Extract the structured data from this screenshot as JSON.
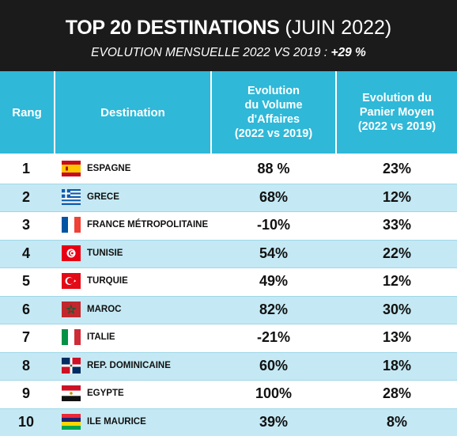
{
  "title": {
    "bold": "TOP 20 DESTINATIONS",
    "normal": "(JUIN 2022)",
    "subtitle": "EVOLUTION MENSUELLE 2022 VS 2019 :",
    "subtitle_value": "+29 %"
  },
  "headers": {
    "rang": "Rang",
    "destination": "Destination",
    "volume": [
      "Evolution",
      "du Volume",
      "d'Affaires",
      "(2022 vs 2019)"
    ],
    "panier": [
      "Evolution du",
      "Panier Moyen",
      "(2022 vs 2019)"
    ]
  },
  "colors": {
    "title_bg": "#1b1b1b",
    "header_bg": "#2fb8d8",
    "row_alt_bg": "#c4e9f4"
  },
  "rows": [
    {
      "rang": "1",
      "destination": "ESPAGNE",
      "flag": "spain-flag-icon",
      "volume": "88 %",
      "panier": "23%"
    },
    {
      "rang": "2",
      "destination": "GRECE",
      "flag": "greece-flag-icon",
      "volume": "68%",
      "panier": "12%"
    },
    {
      "rang": "3",
      "destination": "FRANCE MÉTROPOLITAINE",
      "flag": "france-flag-icon",
      "volume": "-10%",
      "panier": "33%"
    },
    {
      "rang": "4",
      "destination": "TUNISIE",
      "flag": "tunisia-flag-icon",
      "volume": "54%",
      "panier": "22%"
    },
    {
      "rang": "5",
      "destination": "TURQUIE",
      "flag": "turkey-flag-icon",
      "volume": "49%",
      "panier": "12%"
    },
    {
      "rang": "6",
      "destination": "MAROC",
      "flag": "morocco-flag-icon",
      "volume": "82%",
      "panier": "30%"
    },
    {
      "rang": "7",
      "destination": "ITALIE",
      "flag": "italy-flag-icon",
      "volume": "-21%",
      "panier": "13%"
    },
    {
      "rang": "8",
      "destination": "REP. DOMINICAINE",
      "flag": "dominican-republic-flag-icon",
      "volume": "60%",
      "panier": "18%"
    },
    {
      "rang": "9",
      "destination": "EGYPTE",
      "flag": "egypt-flag-icon",
      "volume": "100%",
      "panier": "28%"
    },
    {
      "rang": "10",
      "destination": "ILE MAURICE",
      "flag": "mauritius-flag-icon",
      "volume": "39%",
      "panier": "8%"
    }
  ]
}
